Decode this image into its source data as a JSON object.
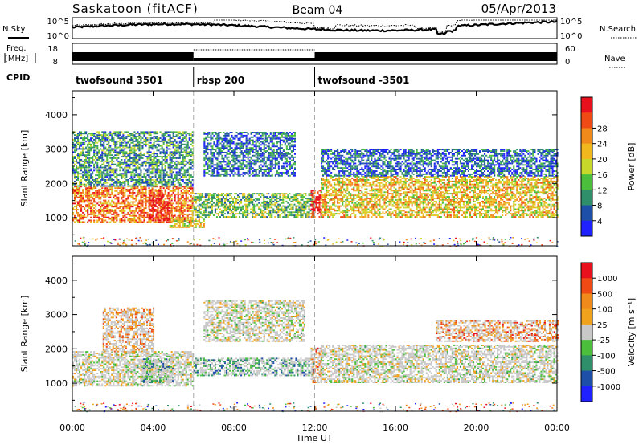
{
  "header": {
    "station": "Saskatoon (fitACF)",
    "beam": "Beam 04",
    "date": "05/Apr/2013"
  },
  "noise_panel": {
    "left_label": "N.Sky",
    "right_label": "N.Search",
    "ticks_left": [
      "10^5",
      "10^0"
    ],
    "ticks_right": [
      "10^5",
      "10^0"
    ]
  },
  "freq_panel": {
    "left_label_1": "Freq.",
    "left_label_2": "[MHz]",
    "right_label": "Nave",
    "ticks_left": [
      "18",
      "8"
    ],
    "ticks_right": [
      "60",
      "0"
    ]
  },
  "cpid": {
    "label": "CPID",
    "segments": [
      {
        "name": "twofsound 3501",
        "start": 0,
        "end": 6
      },
      {
        "name": "rbsp 200",
        "start": 6,
        "end": 12
      },
      {
        "name": "twofsound -3501",
        "start": 12,
        "end": 24
      }
    ]
  },
  "chart_data": [
    {
      "type": "heatmap",
      "name": "power",
      "ylabel": "Slant Range [km]",
      "xlabel": "Time UT",
      "xlim": [
        0,
        24
      ],
      "ylim": [
        180,
        4700
      ],
      "x_ticks": [
        "00:00",
        "04:00",
        "08:00",
        "12:00",
        "16:00",
        "20:00",
        "00:00"
      ],
      "y_ticks": [
        1000,
        2000,
        3000,
        4000
      ],
      "colorbar": {
        "label": "Power [dB]",
        "ticks": [
          "4",
          "8",
          "12",
          "16",
          "20",
          "24",
          "28"
        ],
        "colors": [
          "#1f22ff",
          "#1e4fa8",
          "#2f8f6b",
          "#4bbf3c",
          "#c8d82a",
          "#f0b81c",
          "#f08a1a",
          "#f04a14",
          "#e8101c"
        ]
      },
      "bands": [
        {
          "t0": 0.0,
          "t1": 6.0,
          "r0": 850,
          "r1": 1900,
          "level": 0.75
        },
        {
          "t0": 0.0,
          "t1": 6.0,
          "r0": 1900,
          "r1": 3500,
          "level": 0.3
        },
        {
          "t0": 3.8,
          "t1": 4.8,
          "r0": 900,
          "r1": 1700,
          "level": 0.95
        },
        {
          "t0": 4.8,
          "t1": 6.5,
          "r0": 700,
          "r1": 1000,
          "level": 0.55
        },
        {
          "t0": 6.0,
          "t1": 12.0,
          "r0": 1000,
          "r1": 1700,
          "level": 0.4
        },
        {
          "t0": 6.5,
          "t1": 11.0,
          "r0": 2200,
          "r1": 3500,
          "level": 0.2
        },
        {
          "t0": 11.8,
          "t1": 12.3,
          "r0": 1000,
          "r1": 1800,
          "level": 0.95
        },
        {
          "t0": 12.3,
          "t1": 24.0,
          "r0": 1000,
          "r1": 2200,
          "level": 0.6
        },
        {
          "t0": 12.3,
          "t1": 24.0,
          "r0": 2200,
          "r1": 3000,
          "level": 0.18
        }
      ]
    },
    {
      "type": "heatmap",
      "name": "velocity",
      "ylabel": "Slant Range [km]",
      "xlabel": "Time UT",
      "xlim": [
        0,
        24
      ],
      "ylim": [
        180,
        4700
      ],
      "x_ticks": [
        "00:00",
        "04:00",
        "08:00",
        "12:00",
        "16:00",
        "20:00",
        "00:00"
      ],
      "y_ticks": [
        1000,
        2000,
        3000,
        4000
      ],
      "colorbar": {
        "label": "Velocity [m s⁻¹]",
        "ticks": [
          "1000",
          "500",
          "100",
          "25",
          "-25",
          "-100",
          "-500",
          "-1000"
        ],
        "colors": [
          "#1f22ff",
          "#1e4fa8",
          "#2f8f6b",
          "#4bbf3c",
          "#c8c8c8",
          "#f0a21c",
          "#f08a1a",
          "#f04a14",
          "#e8101c"
        ]
      },
      "bands": [
        {
          "t0": 0.0,
          "t1": 6.0,
          "r0": 900,
          "r1": 1900,
          "level": 0.5
        },
        {
          "t0": 1.5,
          "t1": 4.0,
          "r0": 1900,
          "r1": 3200,
          "level": 0.7
        },
        {
          "t0": 3.5,
          "t1": 5.0,
          "r0": 1000,
          "r1": 1700,
          "level": 0.3
        },
        {
          "t0": 6.0,
          "t1": 12.0,
          "r0": 1200,
          "r1": 1700,
          "level": 0.3
        },
        {
          "t0": 6.5,
          "t1": 11.5,
          "r0": 2200,
          "r1": 3400,
          "level": 0.5
        },
        {
          "t0": 11.8,
          "t1": 12.3,
          "r0": 1000,
          "r1": 2000,
          "level": 0.75
        },
        {
          "t0": 12.3,
          "t1": 24.0,
          "r0": 1000,
          "r1": 2100,
          "level": 0.5
        },
        {
          "t0": 18.0,
          "t1": 24.0,
          "r0": 2200,
          "r1": 2800,
          "level": 0.75
        }
      ]
    }
  ]
}
